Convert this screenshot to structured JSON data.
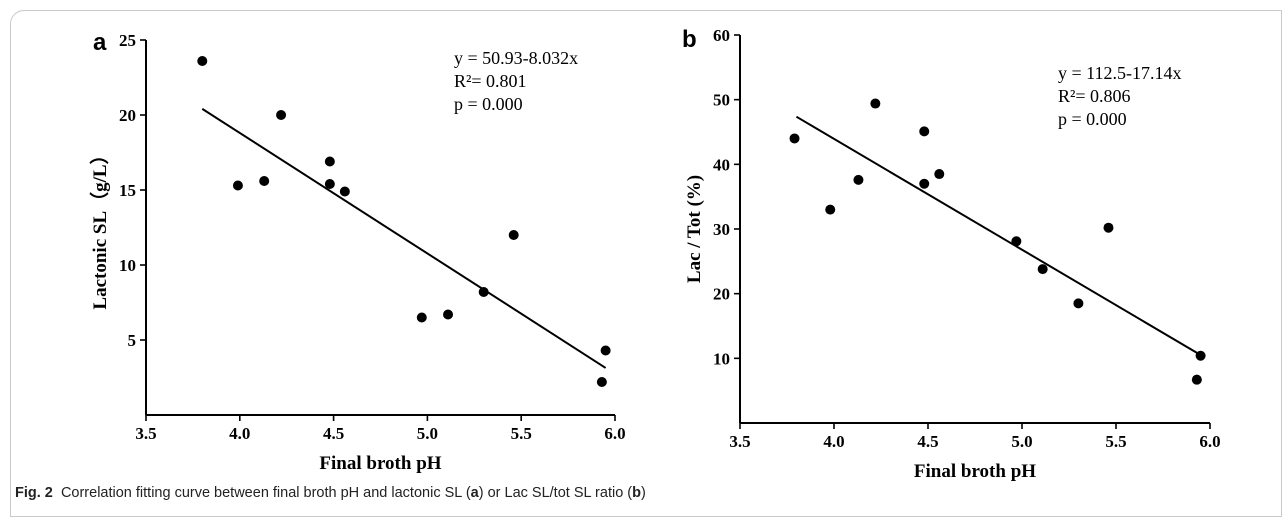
{
  "caption": {
    "label": "Fig. 2",
    "text": "Correlation fitting curve between final broth pH and lactonic SL (",
    "part_a": "a",
    "middle": ") or Lac SL/tot SL ratio (",
    "part_b": "b",
    "end": ")"
  },
  "chart_data": [
    {
      "type": "scatter",
      "panel": "a",
      "xlabel": "Final broth pH",
      "ylabel": "Lactonic SL（g/L）",
      "xlim": [
        3.5,
        6.0
      ],
      "ylim": [
        0,
        25
      ],
      "xticks": [
        "3.5",
        "4.0",
        "4.5",
        "5.0",
        "5.5",
        "6.0"
      ],
      "yticks": [
        "5",
        "10",
        "15",
        "20",
        "25"
      ],
      "x": [
        3.8,
        3.99,
        4.13,
        4.22,
        4.48,
        4.48,
        4.56,
        4.97,
        5.11,
        5.3,
        5.46,
        5.93,
        5.95
      ],
      "y": [
        23.6,
        15.3,
        15.6,
        20.0,
        16.9,
        15.4,
        14.9,
        6.5,
        6.7,
        8.2,
        12.0,
        2.2,
        4.3
      ],
      "fit": {
        "slope": -8.032,
        "intercept": 50.93,
        "x_range": [
          3.8,
          5.95
        ]
      },
      "annotations": [
        "y = 50.93-8.032x",
        "R²= 0.801",
        "p = 0.000"
      ],
      "grid": false
    },
    {
      "type": "scatter",
      "panel": "b",
      "xlabel": "Final broth pH",
      "ylabel": "Lac / Tot (%)",
      "xlim": [
        3.5,
        6.0
      ],
      "ylim": [
        0,
        60
      ],
      "xticks": [
        "3.5",
        "4.0",
        "4.5",
        "5.0",
        "5.5",
        "6.0"
      ],
      "yticks": [
        "10",
        "20",
        "30",
        "40",
        "50",
        "60"
      ],
      "x": [
        3.79,
        3.98,
        4.13,
        4.22,
        4.48,
        4.48,
        4.56,
        4.97,
        5.11,
        5.3,
        5.46,
        5.93,
        5.95
      ],
      "y": [
        44.0,
        33.0,
        37.6,
        49.4,
        45.1,
        37.0,
        38.5,
        28.1,
        23.8,
        18.5,
        30.2,
        6.7,
        10.4
      ],
      "fit": {
        "slope": -17.14,
        "intercept": 112.5,
        "x_range": [
          3.8,
          5.95
        ]
      },
      "annotations": [
        "y = 112.5-17.14x",
        "R²= 0.806",
        "p = 0.000"
      ],
      "grid": false
    }
  ]
}
